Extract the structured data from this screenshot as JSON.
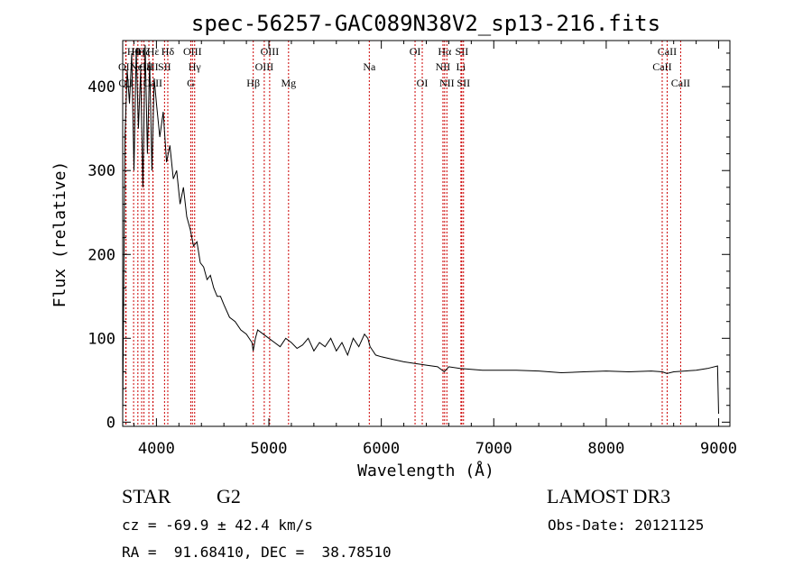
{
  "chart_data": {
    "type": "line",
    "title": "spec-56257-GAC089N38V2_sp13-216.fits",
    "xlabel": "Wavelength (Å)",
    "ylabel": "Flux (relative)",
    "xlim": [
      3700,
      9100
    ],
    "ylim": [
      -5,
      455
    ],
    "xticks": [
      4000,
      5000,
      6000,
      7000,
      8000,
      9000
    ],
    "yticks": [
      0,
      100,
      200,
      300,
      400
    ],
    "grid": false,
    "series": [
      {
        "name": "spectrum",
        "x": [
          3700,
          3720,
          3740,
          3760,
          3780,
          3800,
          3820,
          3840,
          3860,
          3880,
          3900,
          3920,
          3940,
          3960,
          3980,
          4000,
          4030,
          4060,
          4090,
          4120,
          4150,
          4180,
          4210,
          4240,
          4270,
          4300,
          4330,
          4360,
          4390,
          4420,
          4450,
          4480,
          4510,
          4540,
          4570,
          4600,
          4650,
          4700,
          4750,
          4800,
          4850,
          4860,
          4880,
          4900,
          4950,
          5000,
          5050,
          5100,
          5150,
          5200,
          5250,
          5300,
          5350,
          5400,
          5450,
          5500,
          5550,
          5600,
          5650,
          5700,
          5750,
          5800,
          5850,
          5880,
          5900,
          5950,
          6000,
          6100,
          6200,
          6300,
          6400,
          6500,
          6560,
          6600,
          6700,
          6800,
          6900,
          7000,
          7200,
          7400,
          7600,
          7800,
          8000,
          8200,
          8400,
          8500,
          8540,
          8600,
          8700,
          8800,
          8900,
          8990,
          9000
        ],
        "values": [
          10,
          340,
          420,
          380,
          440,
          300,
          445,
          350,
          420,
          280,
          450,
          320,
          430,
          300,
          410,
          380,
          340,
          370,
          310,
          330,
          290,
          300,
          260,
          280,
          245,
          230,
          210,
          215,
          190,
          185,
          170,
          175,
          160,
          150,
          150,
          140,
          125,
          120,
          110,
          105,
          95,
          85,
          100,
          110,
          105,
          100,
          95,
          90,
          100,
          95,
          88,
          92,
          100,
          85,
          95,
          90,
          100,
          85,
          95,
          80,
          100,
          90,
          105,
          100,
          90,
          80,
          78,
          75,
          72,
          70,
          68,
          66,
          60,
          66,
          64,
          63,
          62,
          62,
          62,
          61,
          59,
          60,
          61,
          60,
          61,
          60,
          58,
          60,
          61,
          62,
          64,
          67,
          10
        ]
      }
    ],
    "lines": [
      {
        "label": "OII",
        "x": 3727,
        "row": 2
      },
      {
        "label": "OII",
        "x": 3730,
        "row": 3
      },
      {
        "label": "Hθ",
        "x": 3797,
        "row": 1
      },
      {
        "label": "Hη",
        "x": 3835,
        "row": 1
      },
      {
        "label": "Hζ",
        "x": 3889,
        "row": 1
      },
      {
        "label": "NeIII",
        "x": 3869,
        "row": 2
      },
      {
        "label": "CaII",
        "x": 3933,
        "row": 2
      },
      {
        "label": "CaII",
        "x": 3968,
        "row": 3
      },
      {
        "label": "Hε",
        "x": 3970,
        "row": 1
      },
      {
        "label": "SII",
        "x": 4072,
        "row": 2
      },
      {
        "label": "Hδ",
        "x": 4101,
        "row": 1
      },
      {
        "label": "OIII",
        "x": 4320,
        "row": 1
      },
      {
        "label": "Hγ",
        "x": 4340,
        "row": 2
      },
      {
        "label": "G",
        "x": 4305,
        "row": 3
      },
      {
        "label": "Hβ",
        "x": 4861,
        "row": 3
      },
      {
        "label": "OIII",
        "x": 5007,
        "row": 1
      },
      {
        "label": "OIII",
        "x": 4959,
        "row": 2
      },
      {
        "label": "Mg",
        "x": 5175,
        "row": 3
      },
      {
        "label": "Na",
        "x": 5893,
        "row": 2
      },
      {
        "label": "OI",
        "x": 6300,
        "row": 1
      },
      {
        "label": "OI",
        "x": 6364,
        "row": 3
      },
      {
        "label": "Hα",
        "x": 6563,
        "row": 1
      },
      {
        "label": "NII",
        "x": 6548,
        "row": 2
      },
      {
        "label": "NII",
        "x": 6583,
        "row": 3
      },
      {
        "label": "SII",
        "x": 6716,
        "row": 1
      },
      {
        "label": "Li",
        "x": 6708,
        "row": 2
      },
      {
        "label": "SII",
        "x": 6731,
        "row": 3
      },
      {
        "label": "CaII",
        "x": 8542,
        "row": 1
      },
      {
        "label": "CaII",
        "x": 8498,
        "row": 2
      },
      {
        "label": "CaII",
        "x": 8662,
        "row": 3
      }
    ]
  },
  "footer": {
    "object_class": "STAR",
    "subclass": "G2",
    "survey": "LAMOST DR3",
    "redshift": "cz = -69.9 ± 42.4 km/s",
    "obs_date": "Obs-Date: 20121125",
    "coords": "RA =  91.68410, DEC =  38.78510"
  }
}
